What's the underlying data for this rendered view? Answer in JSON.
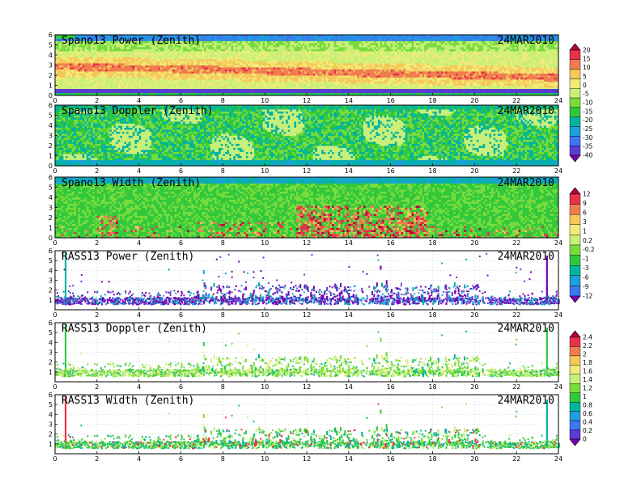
{
  "chart_data": [
    {
      "type": "heatmap",
      "title": "Spano13 Power (Zenith)",
      "date": "24MAR2010",
      "xlim": [
        0,
        24
      ],
      "ylim": [
        0,
        6
      ],
      "x_ticks": [
        0,
        2,
        4,
        6,
        8,
        10,
        12,
        14,
        16,
        18,
        20,
        22,
        24
      ],
      "y_ticks": [
        0,
        1,
        2,
        3,
        4,
        5,
        6
      ],
      "field": "power",
      "colorbar": {
        "labels": [
          "20",
          "15",
          "10",
          "5",
          "0",
          "-5",
          "-10",
          "-15",
          "-20",
          "-25",
          "-30",
          "-35",
          "-40"
        ],
        "colors": [
          "#b4003c",
          "#e6324b",
          "#f07c50",
          "#f5c85a",
          "#f0eb78",
          "#c8f078",
          "#78dc3c",
          "#32c83c",
          "#00b4a0",
          "#1ea0dc",
          "#3c78f0",
          "#5a3cd2",
          "#7800b4"
        ]
      }
    },
    {
      "type": "heatmap",
      "title": "Spano13 Doppler (Zenith)",
      "date": "24MAR2010",
      "xlim": [
        0,
        24
      ],
      "ylim": [
        0,
        6
      ],
      "x_ticks": [
        0,
        2,
        4,
        6,
        8,
        10,
        12,
        14,
        16,
        18,
        20,
        22,
        24
      ],
      "y_ticks": [
        0,
        1,
        2,
        3,
        4,
        5,
        6
      ],
      "field": "doppler"
    },
    {
      "type": "heatmap",
      "title": "Spano13 Width (Zenith)",
      "date": "24MAR2010",
      "xlim": [
        0,
        24
      ],
      "ylim": [
        0,
        6
      ],
      "x_ticks": [
        0,
        2,
        4,
        6,
        8,
        10,
        12,
        14,
        16,
        18,
        20,
        22,
        24
      ],
      "y_ticks": [
        0,
        1,
        2,
        3,
        4,
        5,
        6
      ],
      "field": "width",
      "colorbar": {
        "labels": [
          "12",
          "9",
          "6",
          "3",
          "1",
          "0.2",
          "-0.2",
          "-1",
          "-3",
          "-6",
          "-9",
          "-12"
        ],
        "colors": [
          "#b4003c",
          "#e6324b",
          "#f07c50",
          "#f5c85a",
          "#f0eb78",
          "#c8f078",
          "#78dc3c",
          "#32c83c",
          "#00b4a0",
          "#1ea0dc",
          "#3c78f0",
          "#7800b4"
        ]
      }
    },
    {
      "type": "scatter",
      "title": "RASS13 Power (Zenith)",
      "date": "24MAR2010",
      "xlim": [
        0,
        24
      ],
      "ylim": [
        0,
        6
      ],
      "x_ticks": [
        0,
        2,
        4,
        6,
        8,
        10,
        12,
        14,
        16,
        18,
        20,
        22,
        24
      ],
      "y_ticks": [
        1,
        2,
        3,
        4,
        5,
        6
      ],
      "field": "rass_power"
    },
    {
      "type": "scatter",
      "title": "RASS13 Doppler (Zenith)",
      "date": "24MAR2010",
      "xlim": [
        0,
        24
      ],
      "ylim": [
        0,
        6
      ],
      "x_ticks": [
        0,
        2,
        4,
        6,
        8,
        10,
        12,
        14,
        16,
        18,
        20,
        22,
        24
      ],
      "y_ticks": [
        1,
        2,
        3,
        4,
        5,
        6
      ],
      "field": "rass_doppler",
      "colorbar": {
        "labels": [
          "2.4",
          "2.2",
          "2",
          "1.8",
          "1.6",
          "1.4",
          "1.2",
          "1",
          "0.8",
          "0.6",
          "0.4",
          "0.2",
          "0"
        ],
        "colors": [
          "#b4003c",
          "#e6324b",
          "#f07c50",
          "#f5c85a",
          "#f0eb78",
          "#c8f078",
          "#78dc3c",
          "#32c83c",
          "#00b4a0",
          "#1ea0dc",
          "#3c78f0",
          "#5a3cd2",
          "#7800b4"
        ]
      }
    },
    {
      "type": "scatter",
      "title": "RASS13 Width (Zenith)",
      "date": "24MAR2010",
      "xlim": [
        0,
        24
      ],
      "ylim": [
        0,
        6
      ],
      "x_ticks": [
        0,
        2,
        4,
        6,
        8,
        10,
        12,
        14,
        16,
        18,
        20,
        22,
        24
      ],
      "y_ticks": [
        1,
        2,
        3,
        4,
        5,
        6
      ],
      "field": "rass_width"
    }
  ]
}
